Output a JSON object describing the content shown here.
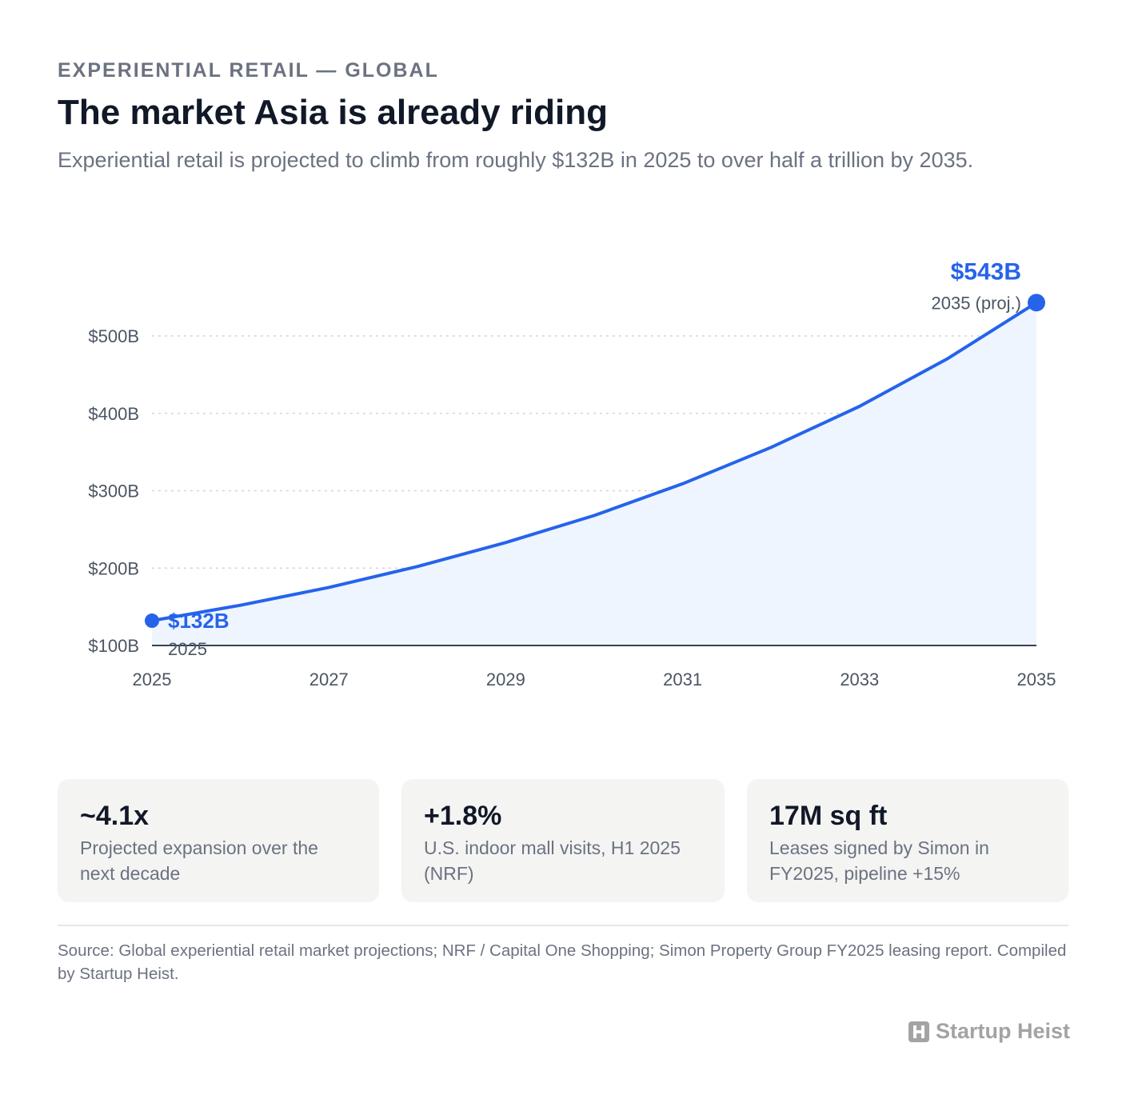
{
  "header": {
    "eyebrow": "EXPERIENTIAL RETAIL — GLOBAL",
    "title": "The market Asia is already riding",
    "subtitle": "Experiential retail is projected to climb from roughly $132B in 2025 to over half a trillion by 2035."
  },
  "chart_data": {
    "type": "area",
    "title": "",
    "xlabel": "",
    "ylabel": "",
    "x": [
      2025,
      2026,
      2027,
      2028,
      2029,
      2030,
      2031,
      2032,
      2033,
      2034,
      2035
    ],
    "values": [
      132,
      152,
      175,
      202,
      233,
      268,
      309,
      356,
      409,
      471,
      543
    ],
    "x_ticks": [
      2025,
      2027,
      2029,
      2031,
      2033,
      2035
    ],
    "x_tick_labels": [
      "2025",
      "2027",
      "2029",
      "2031",
      "2033",
      "2035"
    ],
    "y_ticks": [
      100,
      200,
      300,
      400,
      500
    ],
    "y_tick_labels": [
      "$100B",
      "$200B",
      "$300B",
      "$400B",
      "$500B"
    ],
    "ylim": [
      100,
      550
    ],
    "xlim": [
      2025,
      2035
    ],
    "grid": "horizontal dotted",
    "colors": {
      "line": "#2563eb",
      "area": "#eef5ff",
      "grid": "#d1d5db",
      "axis": "#374151"
    },
    "annotations": [
      {
        "x": 2025,
        "y": 132,
        "value_label": "$132B",
        "sub_label": "2025"
      },
      {
        "x": 2035,
        "y": 543,
        "value_label": "$543B",
        "sub_label": "2035 (proj.)"
      }
    ]
  },
  "stats": [
    {
      "value": "~4.1x",
      "desc": "Projected expansion over the next decade"
    },
    {
      "value": "+1.8%",
      "desc": "U.S. indoor mall visits, H1 2025 (NRF)"
    },
    {
      "value": "17M sq ft",
      "desc": "Leases signed by Simon in FY2025, pipeline +15%"
    }
  ],
  "footer": {
    "source": "Source: Global experiential retail market projections; NRF / Capital One Shopping; Simon Property Group FY2025 leasing report. Compiled by Startup Heist.",
    "brand": "Startup Heist",
    "brand_icon": "h-logo-icon",
    "brand_color": "#a3a3a3"
  }
}
